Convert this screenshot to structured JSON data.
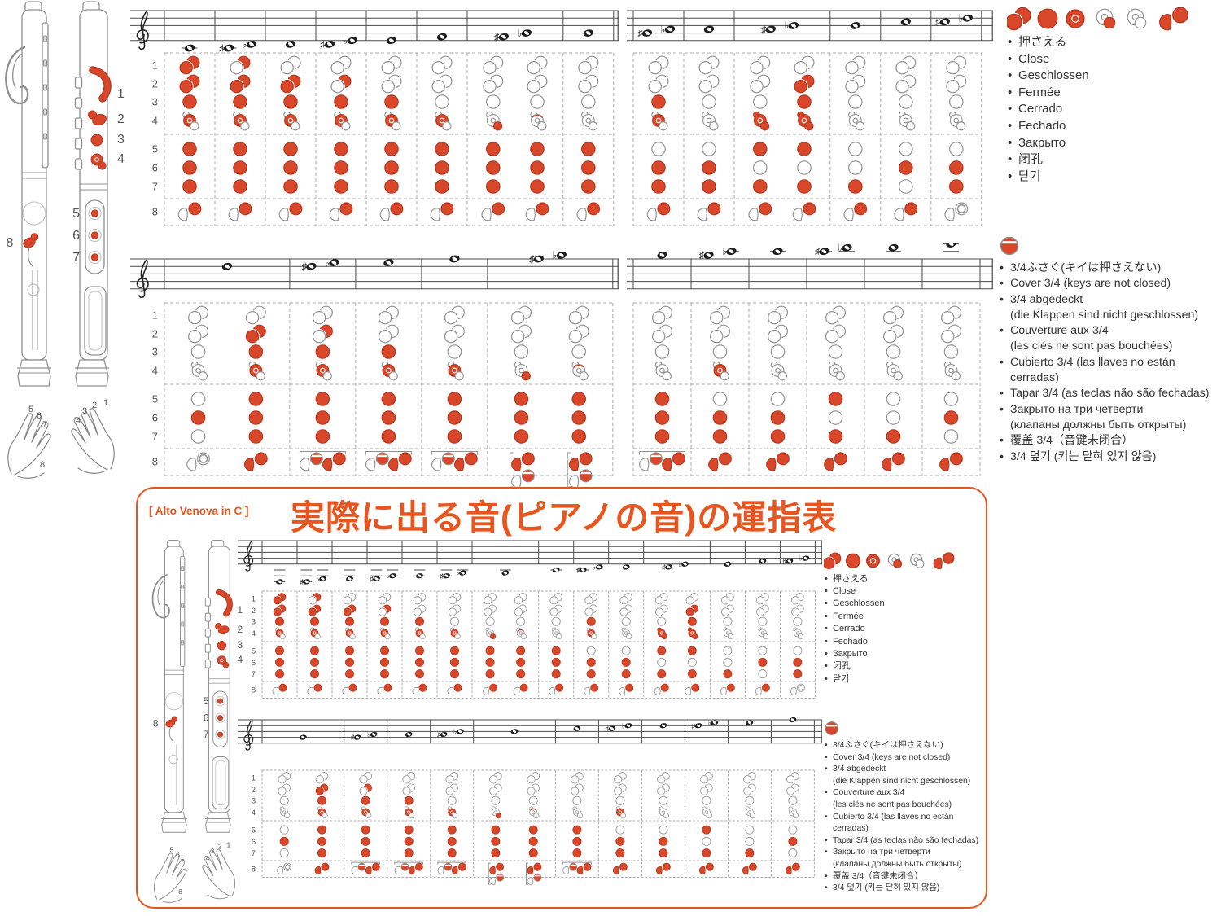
{
  "title_box": {
    "model_label": "[ Alto Venova in C ]",
    "title": "実際に出る音(ピアノの音)の運指表"
  },
  "legend_closed": {
    "icon_names": [
      "pill-key-closed",
      "round-key-closed",
      "ring-key-closed",
      "side-key-small-closed",
      "side-key-open",
      "thumb-key-pair-closed"
    ],
    "items": [
      "押さえる",
      "Close",
      "Geschlossen",
      "Fermée",
      "Cerrado",
      "Fechado",
      "Закрыто",
      "闭孔",
      "닫기"
    ]
  },
  "legend_cover": {
    "icon_names": [
      "three-quarter-cover"
    ],
    "items": [
      {
        "text": "3/4ふさぐ(キイは押さえない)"
      },
      {
        "text": "Cover 3/4 (keys are not closed)"
      },
      {
        "text": "3/4 abgedeckt"
      },
      {
        "text": "(die Klappen sind nicht geschlossen)",
        "cont": true
      },
      {
        "text": "Couverture aux 3/4"
      },
      {
        "text": "(les clés ne sont pas bouchées)",
        "cont": true
      },
      {
        "text": "Cubierto 3/4 (las llaves no están cerradas)"
      },
      {
        "text": "Tapar 3/4 (as teclas não são fechadas)"
      },
      {
        "text": "Закрыто на три четверти"
      },
      {
        "text": "(клапаны должны быть открыты)",
        "cont": true
      },
      {
        "text": "覆盖 3/4（音键未闭合）"
      },
      {
        "text": "3/4 덮기 (키는 닫혀 있지 않음)"
      }
    ]
  },
  "row_labels": [
    "1",
    "2",
    "3",
    "4",
    "5",
    "6",
    "7",
    "8"
  ],
  "hand_labels": {
    "left": [
      "5",
      "6",
      "7",
      "8"
    ],
    "right": [
      "3",
      "2",
      "1",
      "4"
    ]
  },
  "instrument_key_labels": {
    "right_side": [
      "1",
      "2",
      "3",
      "4"
    ],
    "front_holes": [
      "5",
      "6",
      "7"
    ],
    "back": [
      "8"
    ]
  },
  "colors": {
    "key_red": "#d9472b",
    "key_red_dark": "#b43920",
    "outline_gray": "#909090",
    "staff": "#4a4a4a",
    "dash": "#ababab",
    "accent_orange": "#e8551e",
    "text": "#333333",
    "label_gray": "#555555"
  },
  "chart_data": {
    "type": "table",
    "title": "Yamaha Venova fingering chart (written notes above, sounding piano notes in orange box)",
    "key_rows": [
      "1",
      "2",
      "3",
      "4",
      "5",
      "6",
      "7",
      "8"
    ],
    "state_codes": {
      "c": "closed",
      "o": "open",
      "h": "half pill closed (upper oval)",
      "d": "small side key closed",
      "C": "key-4 cluster fully closed",
      "t": "ring key 3/4 covered",
      "a": "thumb: lever open, round key closed",
      "b": "thumb: lever and round key closed",
      "w": "thumb: all open (ring shown)",
      "q": "thumb: round key covered 3/4",
      "B": "bracketed alternatives: 3/4 cover or fully closed",
      "V": "vertical bracket: closed over 3/4 cover"
    },
    "sections": [
      {
        "id": "s1",
        "name": "written-staff-1-left",
        "columns": [
          {
            "note": "C4",
            "acc": "",
            "pos": -2,
            "alts": [
              "ccccccca"
            ]
          },
          {
            "note": "C#4/Db4",
            "acc": "sb",
            "pos": -2,
            "alts": [
              "hcccccca"
            ]
          },
          {
            "note": "D4",
            "acc": "",
            "pos": -1,
            "alts": [
              "occcccca"
            ]
          },
          {
            "note": "D#4/Eb4",
            "acc": "sb",
            "pos": -1,
            "alts": [
              "ohccccca"
            ]
          },
          {
            "note": "E4",
            "acc": "",
            "pos": 0,
            "alts": [
              "ooccccca"
            ]
          },
          {
            "note": "F4",
            "acc": "",
            "pos": 1,
            "alts": [
              "ooocccca"
            ]
          },
          {
            "note": "F#4/Gb4",
            "acc": "sb",
            "pos": 1,
            "alts": [
              "ooodccca",
              "oootccca"
            ]
          },
          {
            "note": "G4",
            "acc": "",
            "pos": 2,
            "alts": [
              "ooooccca"
            ]
          }
        ]
      },
      {
        "id": "s2",
        "name": "written-staff-1-right",
        "columns": [
          {
            "note": "G#4/Ab4",
            "acc": "sb",
            "pos": 2,
            "alts": [
              "ooccocca"
            ]
          },
          {
            "note": "A4",
            "acc": "",
            "pos": 3,
            "alts": [
              "ooooocca"
            ]
          },
          {
            "note": "A#4/Bb4",
            "acc": "sb",
            "pos": 3,
            "alts": [
              "oooCcoca",
              "occCcoca"
            ]
          },
          {
            "note": "B4",
            "acc": "",
            "pos": 4,
            "alts": [
              "ooooooca"
            ]
          },
          {
            "note": "C5",
            "acc": "",
            "pos": 5,
            "alts": [
              "ooooocoa"
            ]
          },
          {
            "note": "C#5/Db5",
            "acc": "sb",
            "pos": 5,
            "alts": [
              "oooooccw"
            ]
          }
        ]
      },
      {
        "id": "s3",
        "name": "written-staff-2-left",
        "columns": [
          {
            "note": "D5",
            "acc": "",
            "pos": 6,
            "alts": [
              "ooooocow",
              "occccccb"
            ]
          },
          {
            "note": "D#5/Eb5",
            "acc": "sb",
            "pos": 6,
            "alts": [
              "ohcccccB"
            ]
          },
          {
            "note": "E5",
            "acc": "",
            "pos": 7,
            "alts": [
              "oocccccB"
            ]
          },
          {
            "note": "F5",
            "acc": "",
            "pos": 8,
            "alts": [
              "oooccccB"
            ]
          },
          {
            "note": "F#5/Gb5",
            "acc": "sb",
            "pos": 8,
            "alts": [
              "ooodcccV",
              "oootcccV"
            ]
          }
        ]
      },
      {
        "id": "s4",
        "name": "written-staff-2-right",
        "columns": [
          {
            "note": "G5",
            "acc": "",
            "pos": 9,
            "alts": [
              "oooocccB"
            ]
          },
          {
            "note": "G#5/Ab5",
            "acc": "sb",
            "pos": 9,
            "alts": [
              "ooococcb"
            ]
          },
          {
            "note": "A5",
            "acc": "",
            "pos": 10,
            "alts": [
              "oooooccb"
            ]
          },
          {
            "note": "A#5/Bb5",
            "acc": "sb",
            "pos": 10,
            "alts": [
              "oooococb"
            ]
          },
          {
            "note": "B5",
            "acc": "",
            "pos": 11,
            "alts": [
              "oooooocb"
            ]
          },
          {
            "note": "C6",
            "acc": "",
            "pos": 12,
            "alts": [
              "ooooocob"
            ]
          }
        ]
      },
      {
        "id": "s5",
        "name": "sounding-staff-1",
        "columns": [
          {
            "note": "F3",
            "acc": "",
            "pos": -6,
            "alts": [
              "ccccccca"
            ]
          },
          {
            "note": "F#3/Gb3",
            "acc": "sb",
            "pos": -6,
            "alts": [
              "hcccccca"
            ]
          },
          {
            "note": "G3",
            "acc": "",
            "pos": -5,
            "alts": [
              "occcccca"
            ]
          },
          {
            "note": "G#3/Ab3",
            "acc": "sb",
            "pos": -5,
            "alts": [
              "ohccccca"
            ]
          },
          {
            "note": "A3",
            "acc": "",
            "pos": -4,
            "alts": [
              "ooccccca"
            ]
          },
          {
            "note": "A#3/Bb3",
            "acc": "sb",
            "pos": -4,
            "alts": [
              "ooocccca"
            ]
          },
          {
            "note": "B3",
            "acc": "",
            "pos": -3,
            "alts": [
              "ooodccca",
              "oootccca"
            ]
          },
          {
            "note": "C4",
            "acc": "",
            "pos": -2,
            "alts": [
              "ooooccca"
            ]
          },
          {
            "note": "C#4/Db4",
            "acc": "sb",
            "pos": -2,
            "alts": [
              "ooccocca"
            ]
          },
          {
            "note": "D4",
            "acc": "",
            "pos": -1,
            "alts": [
              "ooooocca"
            ]
          },
          {
            "note": "D#4/Eb4",
            "acc": "sb",
            "pos": -1,
            "alts": [
              "oooCcoca",
              "occCcoca"
            ]
          },
          {
            "note": "E4",
            "acc": "",
            "pos": 0,
            "alts": [
              "ooooooca"
            ]
          },
          {
            "note": "F4",
            "acc": "",
            "pos": 1,
            "alts": [
              "ooooocoa"
            ]
          },
          {
            "note": "F#4/Gb4",
            "acc": "sb",
            "pos": 1,
            "alts": [
              "oooooccw"
            ]
          }
        ]
      },
      {
        "id": "s6",
        "name": "sounding-staff-2",
        "columns": [
          {
            "note": "G4",
            "acc": "",
            "pos": 2,
            "alts": [
              "ooooocow",
              "occccccb"
            ]
          },
          {
            "note": "G#4/Ab4",
            "acc": "sb",
            "pos": 2,
            "alts": [
              "ohcccccB"
            ]
          },
          {
            "note": "A4",
            "acc": "",
            "pos": 3,
            "alts": [
              "oocccccB"
            ]
          },
          {
            "note": "A#4/Bb4",
            "acc": "sb",
            "pos": 3,
            "alts": [
              "oooccccB"
            ]
          },
          {
            "note": "B4",
            "acc": "",
            "pos": 4,
            "alts": [
              "ooodcccV",
              "oootcccV"
            ]
          },
          {
            "note": "C5",
            "acc": "",
            "pos": 5,
            "alts": [
              "oooocccB"
            ]
          },
          {
            "note": "C#5/Db5",
            "acc": "sb",
            "pos": 5,
            "alts": [
              "ooococcb"
            ]
          },
          {
            "note": "D5",
            "acc": "",
            "pos": 6,
            "alts": [
              "oooooccb"
            ]
          },
          {
            "note": "D#5/Eb5",
            "acc": "sb",
            "pos": 6,
            "alts": [
              "oooococb"
            ]
          },
          {
            "note": "E5",
            "acc": "",
            "pos": 7,
            "alts": [
              "oooooocb"
            ]
          },
          {
            "note": "F5",
            "acc": "",
            "pos": 8,
            "alts": [
              "ooooocob"
            ]
          }
        ]
      }
    ]
  }
}
